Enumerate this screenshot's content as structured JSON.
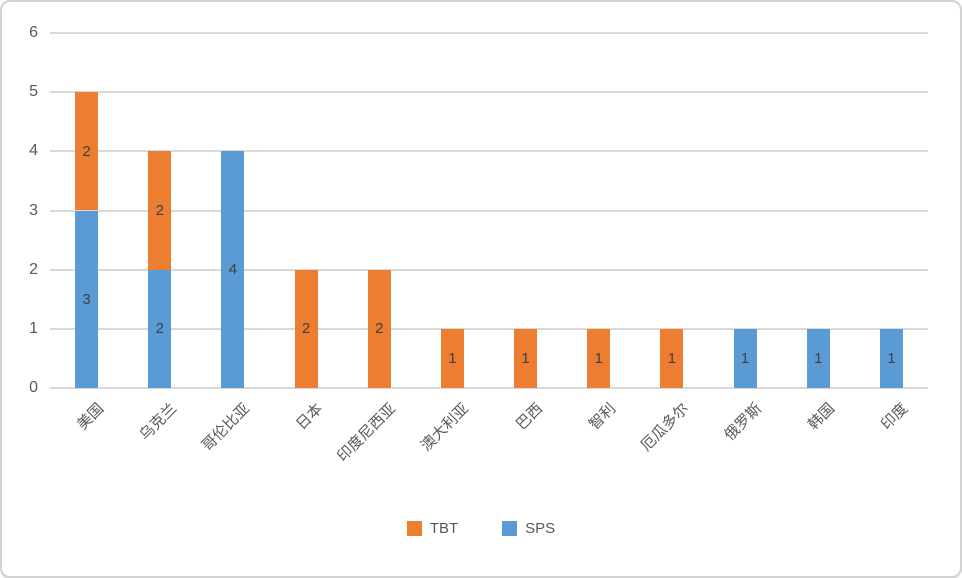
{
  "chart_data": {
    "type": "bar",
    "stacked": true,
    "title": "",
    "xlabel": "",
    "ylabel": "",
    "categories": [
      "美国",
      "乌克兰",
      "哥伦比亚",
      "日本",
      "印度尼西亚",
      "澳大利亚",
      "巴西",
      "智利",
      "厄瓜多尔",
      "俄罗斯",
      "韩国",
      "印度"
    ],
    "series": [
      {
        "name": "TBT",
        "color": "#ED7D31",
        "values": [
          2,
          2,
          0,
          2,
          2,
          1,
          1,
          1,
          1,
          0,
          0,
          0
        ]
      },
      {
        "name": "SPS",
        "color": "#5B9BD5",
        "values": [
          3,
          2,
          4,
          0,
          0,
          0,
          0,
          0,
          0,
          1,
          1,
          1
        ]
      }
    ],
    "stack_order_bottom_to_top": [
      "SPS",
      "TBT"
    ],
    "totals": [
      5,
      4,
      4,
      2,
      2,
      1,
      1,
      1,
      1,
      1,
      1,
      1
    ],
    "data_labels": true,
    "ylim": [
      0,
      6
    ],
    "yticks": [
      0,
      1,
      2,
      3,
      4,
      5,
      6
    ],
    "grid": true,
    "legend_position": "bottom"
  },
  "colors": {
    "tbt_orange": "#ED7D31",
    "sps_blue": "#5B9BD5",
    "gridline": "#D9D9D9",
    "axis_text": "#595959",
    "data_label_text": "#404040",
    "frame_border": "#D2D2D2"
  }
}
